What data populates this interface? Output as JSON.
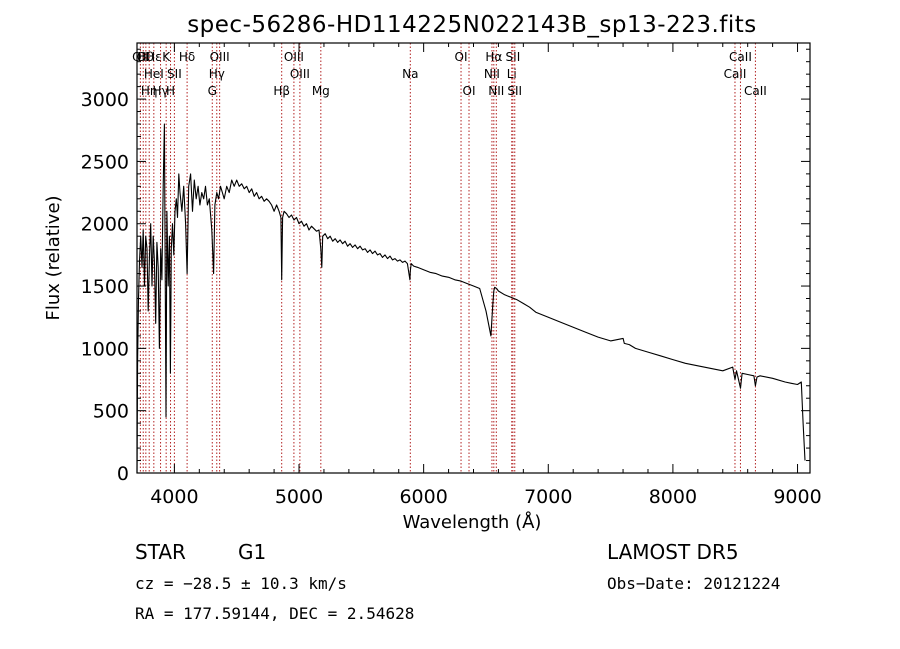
{
  "chart_data": {
    "type": "line",
    "title": "spec-56286-HD114225N022143B_sp13-223.fits",
    "xlabel": "Wavelength (Å)",
    "ylabel": "Flux (relative)",
    "xlim": [
      3700,
      9100
    ],
    "ylim": [
      0,
      3450
    ],
    "xticks": [
      4000,
      5000,
      6000,
      7000,
      8000,
      9000
    ],
    "yticks": [
      0,
      500,
      1000,
      1500,
      2000,
      2500,
      3000
    ],
    "series": [
      {
        "x": [
          3700,
          3705,
          3712,
          3720,
          3730,
          3740,
          3750,
          3760,
          3770,
          3780,
          3790,
          3800,
          3810,
          3820,
          3830,
          3840,
          3850,
          3860,
          3870,
          3880,
          3890,
          3900,
          3910,
          3920,
          3933,
          3940,
          3950,
          3960,
          3968,
          3975,
          3985,
          3995,
          4005,
          4015,
          4025,
          4035,
          4045,
          4060,
          4075,
          4090,
          4102,
          4115,
          4130,
          4145,
          4160,
          4175,
          4190,
          4205,
          4220,
          4235,
          4250,
          4265,
          4280,
          4300,
          4315,
          4325,
          4340,
          4355,
          4370,
          4385,
          4400,
          4420,
          4440,
          4460,
          4480,
          4500,
          4520,
          4540,
          4560,
          4580,
          4600,
          4620,
          4640,
          4660,
          4680,
          4700,
          4720,
          4740,
          4760,
          4780,
          4800,
          4820,
          4840,
          4855,
          4861,
          4868,
          4880,
          4900,
          4920,
          4940,
          4960,
          4980,
          5000,
          5020,
          5040,
          5060,
          5080,
          5100,
          5120,
          5140,
          5160,
          5175,
          5183,
          5190,
          5210,
          5230,
          5250,
          5270,
          5290,
          5310,
          5330,
          5350,
          5370,
          5390,
          5410,
          5430,
          5450,
          5470,
          5490,
          5510,
          5530,
          5550,
          5570,
          5590,
          5610,
          5630,
          5650,
          5670,
          5690,
          5710,
          5730,
          5750,
          5770,
          5790,
          5810,
          5830,
          5850,
          5870,
          5890,
          5893,
          5900,
          5920,
          5950,
          6000,
          6050,
          6100,
          6150,
          6200,
          6250,
          6300,
          6350,
          6400,
          6450,
          6500,
          6540,
          6555,
          6563,
          6570,
          6585,
          6600,
          6650,
          6700,
          6750,
          6800,
          6850,
          6900,
          7000,
          7100,
          7200,
          7300,
          7400,
          7500,
          7600,
          7610,
          7650,
          7700,
          7800,
          7900,
          8000,
          8100,
          8200,
          8300,
          8400,
          8480,
          8498,
          8510,
          8542,
          8555,
          8600,
          8650,
          8662,
          8675,
          8700,
          8800,
          8900,
          8950,
          9000,
          9030,
          9045,
          9060
        ],
        "y": [
          0,
          900,
          1400,
          1700,
          1900,
          1650,
          1950,
          1500,
          1900,
          1800,
          1300,
          1750,
          2000,
          1500,
          1900,
          1700,
          1200,
          1850,
          1650,
          1000,
          1800,
          1550,
          2300,
          2800,
          450,
          2100,
          1500,
          1900,
          800,
          1800,
          2000,
          1750,
          2100,
          2200,
          2050,
          2400,
          2250,
          2100,
          2300,
          2000,
          1600,
          2300,
          2400,
          2100,
          2350,
          2200,
          2300,
          2150,
          2250,
          2200,
          2300,
          2150,
          2200,
          1950,
          1600,
          2150,
          2250,
          2200,
          2300,
          2250,
          2200,
          2300,
          2250,
          2350,
          2300,
          2350,
          2300,
          2320,
          2280,
          2300,
          2250,
          2280,
          2220,
          2250,
          2200,
          2220,
          2180,
          2200,
          2180,
          2150,
          2100,
          2150,
          2100,
          2050,
          1550,
          2050,
          2100,
          2080,
          2050,
          2070,
          2030,
          2050,
          2000,
          2020,
          1980,
          2000,
          1950,
          1980,
          1960,
          1940,
          1950,
          1800,
          1650,
          1900,
          1920,
          1880,
          1900,
          1860,
          1880,
          1850,
          1870,
          1840,
          1860,
          1820,
          1840,
          1810,
          1830,
          1800,
          1820,
          1790,
          1800,
          1770,
          1790,
          1760,
          1780,
          1750,
          1760,
          1730,
          1750,
          1720,
          1740,
          1710,
          1720,
          1700,
          1710,
          1690,
          1700,
          1680,
          1550,
          1620,
          1680,
          1660,
          1650,
          1630,
          1610,
          1600,
          1580,
          1570,
          1550,
          1540,
          1520,
          1500,
          1480,
          1300,
          1100,
          1350,
          1460,
          1490,
          1480,
          1460,
          1430,
          1410,
          1390,
          1360,
          1330,
          1290,
          1250,
          1210,
          1170,
          1130,
          1090,
          1060,
          1080,
          1040,
          1030,
          1000,
          970,
          940,
          910,
          880,
          860,
          840,
          820,
          850,
          750,
          820,
          680,
          800,
          790,
          780,
          700,
          770,
          780,
          760,
          730,
          720,
          710,
          730,
          400,
          100
        ]
      }
    ],
    "lines": [
      {
        "w": 3727,
        "rows": [
          "OII"
        ]
      },
      {
        "w": 3750,
        "rows": [
          "OI"
        ]
      },
      {
        "w": 3771,
        "rows": [
          "Hθ"
        ]
      },
      {
        "w": 3798,
        "rows": [
          "",
          "",
          "Hη"
        ]
      },
      {
        "w": 3835,
        "rows": [
          "Hε",
          "HeI"
        ]
      },
      {
        "w": 3889,
        "rows": [
          "",
          "",
          "Hγ"
        ]
      },
      {
        "w": 3934,
        "rows": [
          "K"
        ]
      },
      {
        "w": 3969,
        "rows": [
          "",
          "",
          "H"
        ]
      },
      {
        "w": 4000,
        "rows": [
          "",
          "SII"
        ]
      },
      {
        "w": 4102,
        "rows": [
          "Hδ"
        ]
      },
      {
        "w": 4304,
        "rows": [
          "",
          "",
          "G"
        ]
      },
      {
        "w": 4340,
        "rows": [
          "",
          "Hγ"
        ]
      },
      {
        "w": 4363,
        "rows": [
          "OIII"
        ]
      },
      {
        "w": 4861,
        "rows": [
          "",
          "",
          "Hβ"
        ]
      },
      {
        "w": 4959,
        "rows": [
          "OIII"
        ]
      },
      {
        "w": 5007,
        "rows": [
          "",
          "OIII"
        ]
      },
      {
        "w": 5175,
        "rows": [
          "",
          "",
          "Mg"
        ]
      },
      {
        "w": 5893,
        "rows": [
          "",
          "Na"
        ]
      },
      {
        "w": 6300,
        "rows": [
          "OI"
        ]
      },
      {
        "w": 6364,
        "rows": [
          "",
          "",
          "OI"
        ]
      },
      {
        "w": 6548,
        "rows": [
          "",
          "NII"
        ]
      },
      {
        "w": 6563,
        "rows": [
          "Hα"
        ]
      },
      {
        "w": 6583,
        "rows": [
          "",
          "",
          "NII"
        ]
      },
      {
        "w": 6707,
        "rows": [
          "",
          "Li"
        ]
      },
      {
        "w": 6716,
        "rows": [
          "SII"
        ]
      },
      {
        "w": 6731,
        "rows": [
          "",
          "",
          "SII"
        ]
      },
      {
        "w": 8498,
        "rows": [
          "",
          "CaII"
        ]
      },
      {
        "w": 8542,
        "rows": [
          "CaII"
        ]
      },
      {
        "w": 8662,
        "rows": [
          "",
          "",
          "CaII"
        ]
      }
    ]
  },
  "info": {
    "object_type": "STAR",
    "subclass": "G1",
    "survey": "LAMOST DR5",
    "cz": "cz = −28.5 ± 10.3 km/s",
    "obs_date": "Obs−Date: 20121224",
    "coords": "RA = 177.59144, DEC =   2.54628"
  },
  "colors": {
    "line_marker": "#b22222",
    "spectrum": "#000000"
  }
}
